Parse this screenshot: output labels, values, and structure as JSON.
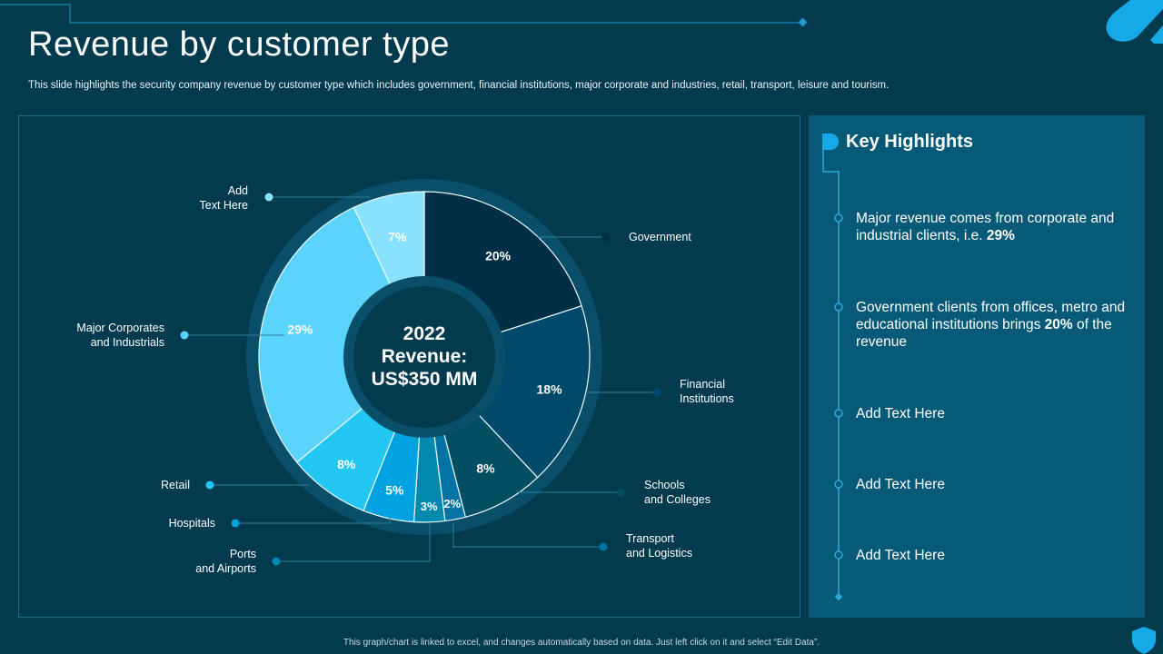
{
  "slide": {
    "title": "Revenue by customer type",
    "subtitle": "This slide highlights the security company revenue by customer type which includes government, financial institutions, major corporate and industries, retail, transport, leisure and tourism.",
    "footer": "This graph/chart is linked to excel, and changes automatically based on data. Just left click on it and select “Edit Data”."
  },
  "chart_data": {
    "type": "pie",
    "center_label": [
      "2022",
      "Revenue:",
      "US$350 MM"
    ],
    "categories": [
      "Government",
      "Financial Institutions",
      "Schools and Colleges",
      "Transport and Logistics",
      "Ports and Airports",
      "Hospitals",
      "Retail",
      "Major Corporates and Industrials",
      "Add Text Here"
    ],
    "label_lines": [
      [
        "Government"
      ],
      [
        "Financial",
        "Institutions"
      ],
      [
        "Schools",
        "and Colleges"
      ],
      [
        "Transport",
        "and Logistics"
      ],
      [
        "Ports",
        "and Airports"
      ],
      [
        "Hospitals"
      ],
      [
        "Retail"
      ],
      [
        "Major Corporates",
        "and Industrials"
      ],
      [
        "Add",
        "Text Here"
      ]
    ],
    "values": [
      20,
      18,
      8,
      2,
      3,
      5,
      8,
      29,
      7
    ],
    "value_labels": [
      "20%",
      "18%",
      "8%",
      "2%",
      "3%",
      "5%",
      "8%",
      "29%",
      "7%"
    ],
    "colors": [
      "#022f46",
      "#01496b",
      "#024e63",
      "#0273a4",
      "#0289ad",
      "#00a3e0",
      "#22c8f3",
      "#5ad4fb",
      "#88e2fd"
    ]
  },
  "highlights": {
    "heading": "Key Highlights",
    "items": [
      {
        "pre": "Major revenue comes from corporate and industrial clients, i.e. ",
        "bold": "29%",
        "post": ""
      },
      {
        "pre": "Government clients from offices, metro and educational institutions brings ",
        "bold": "20%",
        "post": " of the revenue"
      },
      {
        "pre": "Add Text Here",
        "bold": "",
        "post": ""
      },
      {
        "pre": "Add Text Here",
        "bold": "",
        "post": ""
      },
      {
        "pre": "Add Text Here",
        "bold": "",
        "post": ""
      }
    ]
  },
  "colors": {
    "background": "#023a4e",
    "panel": "#075a77",
    "ring": "#0a4f69",
    "accent": "#16a9e8"
  }
}
